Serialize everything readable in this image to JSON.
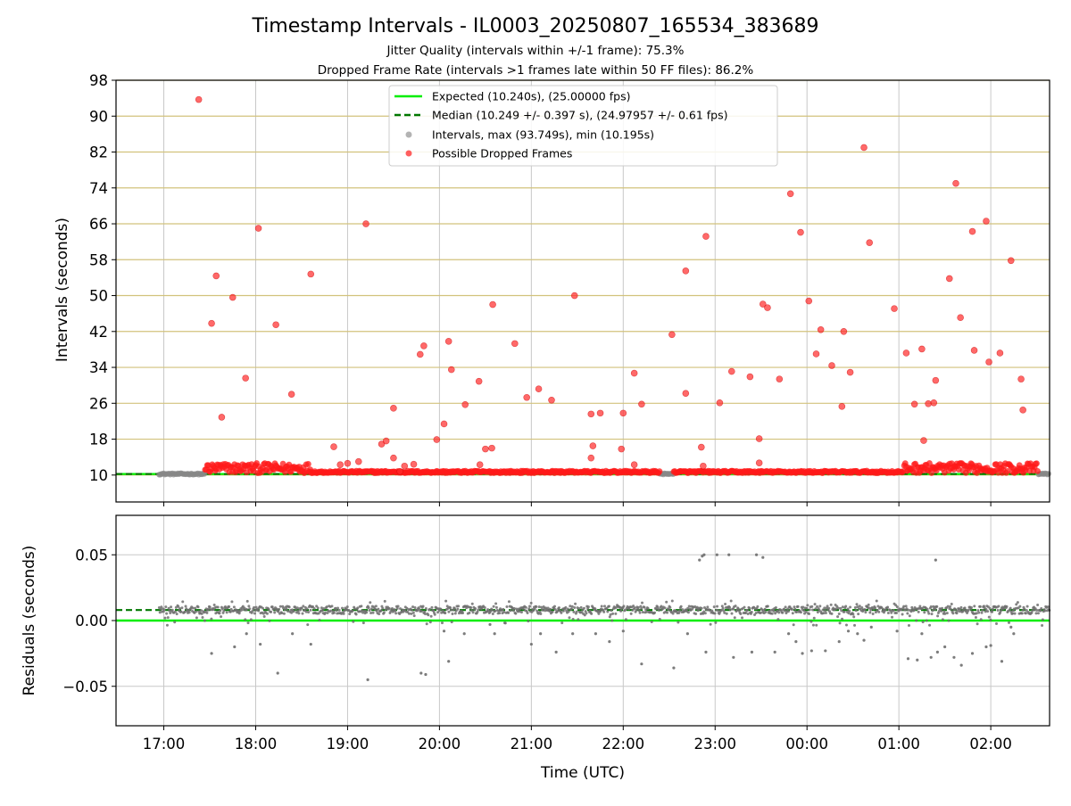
{
  "chart_data": [
    {
      "type": "scatter",
      "title": "Timestamp Intervals - IL0003_20250807_165534_383689",
      "subtitle_lines": [
        "Jitter Quality (intervals within +/-1 frame): 75.3%",
        "Dropped Frame Rate (intervals >1 frames late within 50 FF files): 86.2%"
      ],
      "xlabel": "",
      "ylabel": "Intervals (seconds)",
      "x_range_hours": [
        16.48,
        26.64
      ],
      "ylim": [
        4,
        98
      ],
      "yticks": [
        10,
        18,
        26,
        34,
        42,
        50,
        58,
        66,
        74,
        82,
        90,
        98
      ],
      "grid": "horizontal lines dark-khaki, vertical lines light gray",
      "legend": {
        "placement": "top-center",
        "entries": [
          {
            "label": "Expected (10.240s), (25.00000 fps)",
            "style": "solid-line",
            "color": "#00ee00"
          },
          {
            "label": "Median (10.249 +/- 0.397 s), (24.97957 +/- 0.61 fps)",
            "style": "dashed-line",
            "color": "#007700"
          },
          {
            "label": "Intervals, max (93.749s), min (10.195s)",
            "style": "marker",
            "color": "#999999"
          },
          {
            "label": "Possible Dropped Frames",
            "style": "marker",
            "color": "#ff2a2a"
          }
        ]
      },
      "expected_line": 10.24,
      "median_line": 10.249,
      "baseline_dropped_segments": [
        [
          17.45,
          18.6
        ],
        [
          18.6,
          22.4
        ],
        [
          22.55,
          26.52
        ]
      ],
      "baseline_gray_segments": [
        [
          16.95,
          17.45
        ],
        [
          22.4,
          22.55
        ],
        [
          26.52,
          26.64
        ]
      ],
      "dropped_points": [
        [
          17.38,
          93.7
        ],
        [
          17.52,
          43.8
        ],
        [
          17.57,
          54.4
        ],
        [
          17.63,
          22.9
        ],
        [
          17.75,
          49.6
        ],
        [
          17.89,
          31.6
        ],
        [
          18.03,
          65.0
        ],
        [
          18.22,
          43.5
        ],
        [
          18.39,
          28.0
        ],
        [
          18.6,
          54.8
        ],
        [
          18.85,
          16.3
        ],
        [
          18.92,
          12.3
        ],
        [
          19.0,
          12.6
        ],
        [
          19.12,
          13.0
        ],
        [
          19.2,
          66.0
        ],
        [
          19.37,
          16.9
        ],
        [
          19.42,
          17.6
        ],
        [
          19.5,
          24.9
        ],
        [
          19.5,
          13.8
        ],
        [
          19.57,
          10.8
        ],
        [
          19.62,
          12.0
        ],
        [
          19.72,
          12.4
        ],
        [
          19.79,
          36.9
        ],
        [
          19.83,
          38.8
        ],
        [
          19.97,
          17.9
        ],
        [
          20.05,
          21.4
        ],
        [
          20.1,
          39.8
        ],
        [
          20.13,
          33.5
        ],
        [
          20.28,
          25.7
        ],
        [
          20.43,
          30.9
        ],
        [
          20.44,
          12.3
        ],
        [
          20.5,
          15.8
        ],
        [
          20.57,
          16.0
        ],
        [
          20.58,
          48.0
        ],
        [
          20.82,
          39.3
        ],
        [
          20.95,
          27.3
        ],
        [
          21.08,
          29.2
        ],
        [
          21.22,
          26.7
        ],
        [
          21.47,
          50.0
        ],
        [
          21.65,
          23.6
        ],
        [
          21.65,
          13.8
        ],
        [
          21.67,
          16.5
        ],
        [
          21.75,
          23.8
        ],
        [
          21.98,
          15.8
        ],
        [
          22.0,
          23.8
        ],
        [
          22.12,
          12.3
        ],
        [
          22.12,
          32.7
        ],
        [
          22.2,
          25.8
        ],
        [
          22.53,
          41.3
        ],
        [
          22.68,
          55.5
        ],
        [
          22.68,
          28.2
        ],
        [
          22.85,
          16.2
        ],
        [
          22.87,
          12.0
        ],
        [
          22.9,
          63.2
        ],
        [
          23.05,
          26.1
        ],
        [
          23.18,
          33.1
        ],
        [
          23.38,
          31.9
        ],
        [
          23.48,
          18.1
        ],
        [
          23.48,
          12.7
        ],
        [
          23.52,
          48.1
        ],
        [
          23.57,
          47.3
        ],
        [
          23.7,
          31.4
        ],
        [
          23.82,
          72.7
        ],
        [
          23.93,
          64.1
        ],
        [
          24.02,
          48.8
        ],
        [
          24.1,
          37.0
        ],
        [
          24.15,
          42.4
        ],
        [
          24.27,
          34.4
        ],
        [
          24.38,
          25.3
        ],
        [
          24.4,
          42.0
        ],
        [
          24.47,
          32.9
        ],
        [
          24.62,
          83.0
        ],
        [
          24.68,
          61.8
        ],
        [
          24.95,
          47.1
        ],
        [
          25.08,
          37.2
        ],
        [
          25.17,
          25.8
        ],
        [
          25.25,
          38.1
        ],
        [
          25.27,
          17.7
        ],
        [
          25.32,
          25.9
        ],
        [
          25.38,
          26.1
        ],
        [
          25.4,
          31.1
        ],
        [
          25.55,
          53.8
        ],
        [
          25.62,
          75.0
        ],
        [
          25.67,
          45.1
        ],
        [
          25.8,
          64.3
        ],
        [
          25.82,
          37.8
        ],
        [
          25.95,
          66.6
        ],
        [
          25.98,
          35.2
        ],
        [
          26.1,
          37.2
        ],
        [
          26.22,
          57.8
        ],
        [
          26.33,
          31.4
        ],
        [
          26.35,
          24.5
        ]
      ],
      "residuals_subplot": {
        "type": "scatter",
        "xlabel": "Time (UTC)",
        "ylabel": "Residuals (seconds)",
        "ylim": [
          -0.08,
          0.08
        ],
        "yticks": [
          0.05,
          0.0,
          -0.05
        ],
        "ytick_labels": [
          "0.05",
          "0.00",
          "−0.05"
        ],
        "xticks": [
          "17:00",
          "18:00",
          "19:00",
          "20:00",
          "21:00",
          "22:00",
          "23:00",
          "00:00",
          "01:00",
          "02:00"
        ],
        "expected_line": 0.0,
        "median_line": 0.008,
        "band": [
          -0.004,
          0.015
        ],
        "outliers": [
          [
            17.52,
            -0.025
          ],
          [
            17.77,
            -0.02
          ],
          [
            17.9,
            -0.01
          ],
          [
            18.05,
            -0.018
          ],
          [
            18.24,
            -0.04
          ],
          [
            18.4,
            -0.01
          ],
          [
            18.6,
            -0.018
          ],
          [
            19.22,
            -0.045
          ],
          [
            19.8,
            -0.04
          ],
          [
            19.85,
            -0.041
          ],
          [
            20.05,
            -0.008
          ],
          [
            20.1,
            -0.031
          ],
          [
            20.27,
            -0.01
          ],
          [
            20.55,
            -0.003
          ],
          [
            20.6,
            -0.01
          ],
          [
            21.0,
            -0.018
          ],
          [
            21.1,
            -0.01
          ],
          [
            21.27,
            -0.024
          ],
          [
            21.45,
            -0.01
          ],
          [
            21.7,
            -0.01
          ],
          [
            21.85,
            -0.016
          ],
          [
            22.0,
            -0.008
          ],
          [
            22.2,
            -0.033
          ],
          [
            22.55,
            -0.036
          ],
          [
            22.7,
            -0.01
          ],
          [
            22.83,
            0.046
          ],
          [
            22.86,
            0.049
          ],
          [
            22.88,
            0.05
          ],
          [
            22.9,
            -0.024
          ],
          [
            23.02,
            0.05
          ],
          [
            23.15,
            0.05
          ],
          [
            23.2,
            -0.028
          ],
          [
            23.4,
            -0.024
          ],
          [
            23.45,
            0.05
          ],
          [
            23.52,
            0.048
          ],
          [
            23.65,
            -0.024
          ],
          [
            23.8,
            -0.01
          ],
          [
            23.88,
            -0.016
          ],
          [
            23.95,
            -0.025
          ],
          [
            24.05,
            -0.023
          ],
          [
            24.2,
            -0.023
          ],
          [
            24.35,
            -0.016
          ],
          [
            24.45,
            -0.008
          ],
          [
            24.55,
            -0.01
          ],
          [
            24.62,
            -0.015
          ],
          [
            24.7,
            -0.005
          ],
          [
            24.98,
            -0.008
          ],
          [
            25.1,
            -0.029
          ],
          [
            25.2,
            -0.03
          ],
          [
            25.25,
            -0.01
          ],
          [
            25.35,
            -0.028
          ],
          [
            25.4,
            0.046
          ],
          [
            25.42,
            -0.024
          ],
          [
            25.5,
            -0.02
          ],
          [
            25.6,
            -0.028
          ],
          [
            25.68,
            -0.034
          ],
          [
            25.8,
            -0.025
          ],
          [
            25.95,
            -0.02
          ],
          [
            26.0,
            -0.019
          ],
          [
            26.12,
            -0.031
          ],
          [
            26.25,
            -0.01
          ],
          [
            26.22,
            -0.005
          ]
        ]
      }
    }
  ]
}
